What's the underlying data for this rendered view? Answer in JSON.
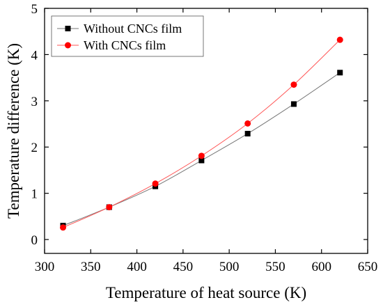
{
  "chart_data": {
    "type": "line",
    "title": "",
    "xlabel": "Temperature of heat source (K)",
    "ylabel": "Temperature difference (K)",
    "xlim": [
      300,
      650
    ],
    "ylim": [
      -0.3,
      5
    ],
    "xticks": [
      300,
      350,
      400,
      450,
      500,
      550,
      600,
      650
    ],
    "yticks": [
      0,
      1,
      2,
      3,
      4,
      5
    ],
    "grid": false,
    "legend_position": "top-left",
    "x": [
      320,
      370,
      420,
      470,
      520,
      570,
      620
    ],
    "series": [
      {
        "name": "Without CNCs film",
        "color": "#000000",
        "line_color": "#777777",
        "marker": "square",
        "values": [
          0.3,
          0.7,
          1.15,
          1.71,
          2.29,
          2.93,
          3.61
        ]
      },
      {
        "name": "With CNCs film",
        "color": "#ff0000",
        "line_color": "#ff5555",
        "marker": "circle",
        "values": [
          0.26,
          0.7,
          1.21,
          1.81,
          2.51,
          3.35,
          4.32
        ]
      }
    ]
  }
}
